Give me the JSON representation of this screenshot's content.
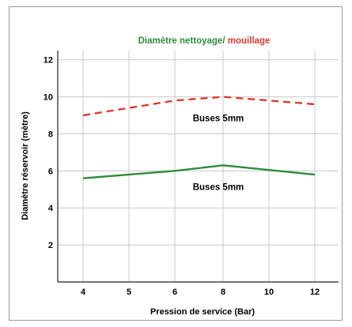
{
  "chart_data": {
    "type": "line",
    "title_part1": "Diamètre nettoyage/",
    "title_part2": " mouillage",
    "xlabel": "Pression de service (Bar)",
    "ylabel": "Diamètre réservoir (mètre)",
    "x_ticks": [
      "4",
      "5",
      "6",
      "8",
      "10",
      "12"
    ],
    "y_ticks": [
      "2",
      "4",
      "6",
      "8",
      "10",
      "12"
    ],
    "ylim": [
      0,
      12.5
    ],
    "grid": true,
    "colors": {
      "nettoyage": "#2e8b3a",
      "mouillage": "#e03a2e"
    },
    "series": [
      {
        "key": "mouillage",
        "style": "dashed",
        "x": [
          "4",
          "6",
          "8",
          "12"
        ],
        "values": [
          9.0,
          9.8,
          10.0,
          9.6
        ],
        "label": "Buses 5mm"
      },
      {
        "key": "nettoyage",
        "style": "solid",
        "x": [
          "4",
          "6",
          "8",
          "12"
        ],
        "values": [
          5.6,
          6.0,
          6.3,
          5.8
        ],
        "label": "Buses 5mm"
      }
    ]
  }
}
